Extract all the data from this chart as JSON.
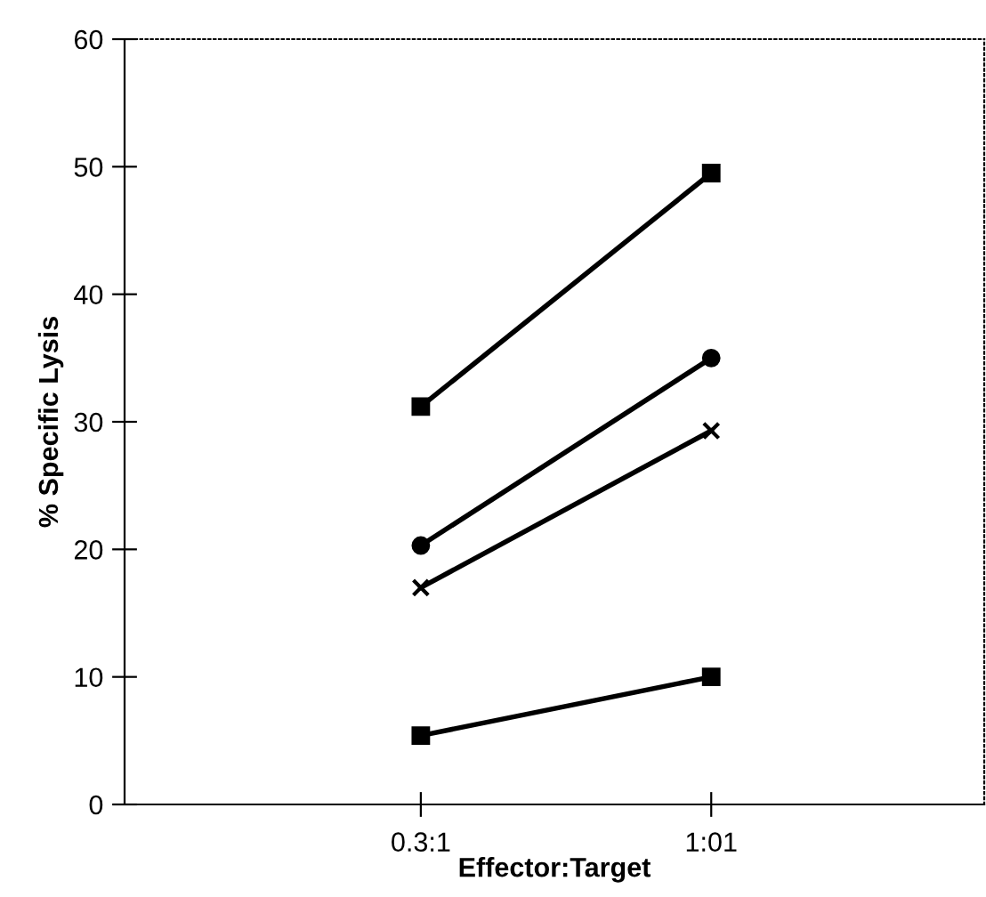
{
  "chart_data": {
    "type": "line",
    "xlabel": "Effector:Target",
    "ylabel": "% Specific Lysis",
    "categories": [
      "0.3:1",
      "1:01"
    ],
    "series": [
      {
        "color": "#000000",
        "marker": "square",
        "values": [
          31.2,
          49.5
        ]
      },
      {
        "color": "#000000",
        "marker": "circle",
        "values": [
          20.3,
          35
        ]
      },
      {
        "color": "#000000",
        "marker": "cross",
        "values": [
          17,
          29.3
        ]
      },
      {
        "color": "#000000",
        "marker": "square",
        "values": [
          5.4,
          10
        ]
      }
    ],
    "ylim": [
      0,
      60
    ],
    "yticks": [
      0,
      10,
      20,
      30,
      40,
      50,
      60
    ],
    "grid": false,
    "legend": false,
    "line_style": "solid"
  }
}
